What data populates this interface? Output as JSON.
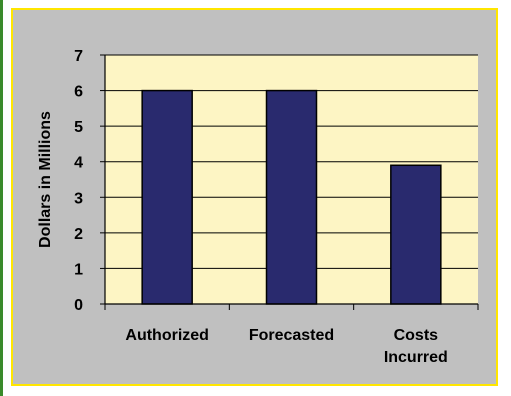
{
  "chart_data": {
    "type": "bar",
    "title": "",
    "xlabel": "",
    "ylabel": "Dollars in Millions",
    "categories": [
      [
        "Authorized"
      ],
      [
        "Forecasted"
      ],
      [
        "Costs",
        "Incurred"
      ]
    ],
    "values": [
      6,
      6,
      3.9
    ],
    "ylim": [
      0,
      7
    ],
    "yticks": [
      "0",
      "1",
      "2",
      "3",
      "4",
      "5",
      "6",
      "7"
    ],
    "grid": true,
    "legend": "none"
  },
  "colors": {
    "outer_background": "#c0c0c0",
    "outer_border": "#ffe600",
    "plot_background": "#fdf5c4",
    "bar_fill": "#292a6e",
    "bar_stroke": "#000000",
    "gridline": "#000000",
    "left_rule": "#3a8a2a"
  }
}
